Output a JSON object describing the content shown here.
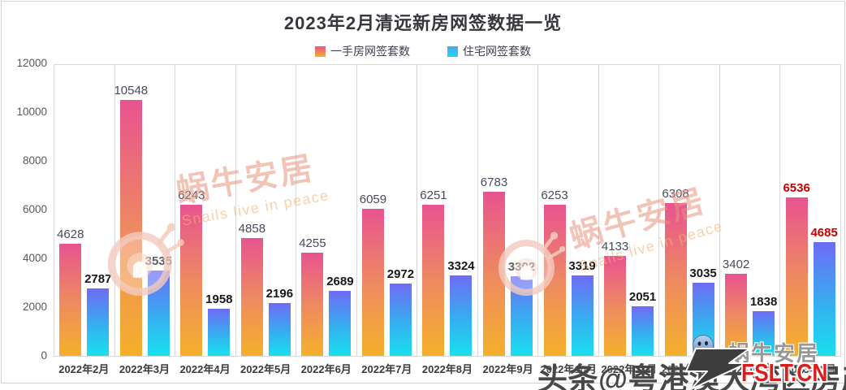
{
  "chart_data": {
    "type": "bar",
    "title": "2023年2月清远新房网签数据一览",
    "categories": [
      "2022年2月",
      "2022年3月",
      "2022年4月",
      "2022年5月",
      "2022年6月",
      "2022年7月",
      "2022年8月",
      "2022年9月",
      "2022年10月",
      "2022年11月",
      "2022年12月",
      "2023年1月",
      "2023年2月"
    ],
    "series": [
      {
        "name": "一手房网签套数",
        "color_top": "#e85390",
        "color_bottom": "#f5b02a",
        "values": [
          4628,
          10548,
          6243,
          4858,
          4255,
          6059,
          6251,
          6783,
          6253,
          4133,
          6308,
          3402,
          6536
        ]
      },
      {
        "name": "住宅网签套数",
        "color_top": "#6f6bf5",
        "color_bottom": "#19e0ee",
        "values": [
          2787,
          3535,
          1958,
          2196,
          2689,
          2972,
          3324,
          3302,
          3319,
          2051,
          3035,
          1838,
          4685
        ]
      }
    ],
    "xlabel": "",
    "ylabel": "",
    "ylim": [
      0,
      12000
    ],
    "yticks": [
      12000,
      10000,
      8000,
      6000,
      4000,
      2000,
      0
    ],
    "grid": "vertical category separators only",
    "legend_position": "top-center",
    "value_labels": "above bars",
    "highlight_last_category": true,
    "highlight_color": "#c80000"
  },
  "watermarks": {
    "snail_text": "蜗牛安居",
    "snail_subtext": "Snails live in peace",
    "toutiao_text": "头条@粤港澳大湾区房产信息",
    "corner_brand_text": "蜗牛安居",
    "corner_site_text": "FSLT.CN"
  }
}
